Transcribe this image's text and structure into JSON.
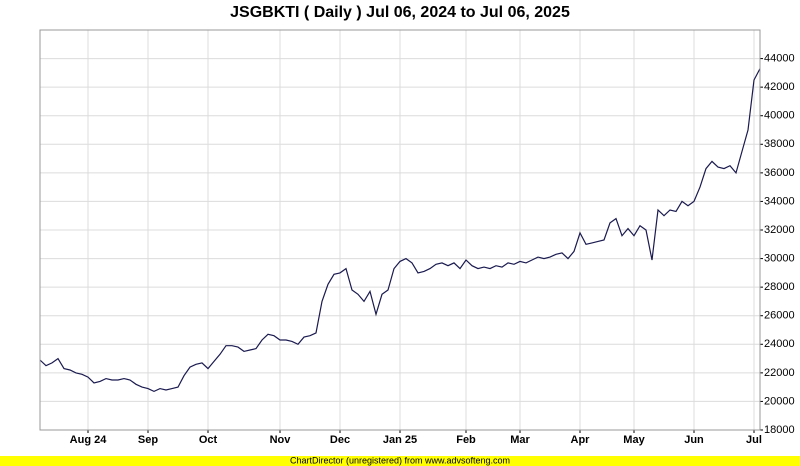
{
  "chart_data": {
    "type": "line",
    "title": "JSGBKTI ( Daily ) Jul 06, 2024 to Jul 06, 2025",
    "footer": "ChartDirector (unregistered) from www.advsofteng.com",
    "categories": [
      null,
      null,
      null,
      null,
      null,
      null,
      null,
      null,
      "Aug 24",
      null,
      null,
      null,
      null,
      null,
      null,
      null,
      null,
      null,
      "Sep",
      null,
      null,
      null,
      null,
      null,
      null,
      null,
      null,
      null,
      "Oct",
      null,
      null,
      null,
      null,
      null,
      null,
      null,
      null,
      null,
      null,
      null,
      "Nov",
      null,
      null,
      null,
      null,
      null,
      null,
      null,
      null,
      null,
      "Dec",
      null,
      null,
      null,
      null,
      null,
      null,
      null,
      null,
      null,
      "Jan 25",
      null,
      null,
      null,
      null,
      null,
      null,
      null,
      null,
      null,
      null,
      "Feb",
      null,
      null,
      null,
      null,
      null,
      null,
      null,
      null,
      "Mar",
      null,
      null,
      null,
      null,
      null,
      null,
      null,
      null,
      null,
      "Apr",
      null,
      null,
      null,
      null,
      null,
      null,
      null,
      null,
      "May",
      null,
      null,
      null,
      null,
      null,
      null,
      null,
      null,
      null,
      "Jun",
      null,
      null,
      null,
      null,
      null,
      null,
      null,
      null,
      null,
      "Jul",
      null
    ],
    "values": [
      22900,
      22500,
      22700,
      23000,
      22300,
      22200,
      22000,
      21900,
      21700,
      21300,
      21400,
      21600,
      21500,
      21500,
      21600,
      21500,
      21200,
      21000,
      20900,
      20700,
      20900,
      20800,
      20900,
      21000,
      21800,
      22400,
      22600,
      22700,
      22300,
      22800,
      23300,
      23900,
      23900,
      23800,
      23500,
      23600,
      23700,
      24300,
      24700,
      24600,
      24300,
      24300,
      24200,
      24000,
      24500,
      24600,
      24800,
      27000,
      28200,
      28900,
      29000,
      29300,
      27800,
      27500,
      27000,
      27700,
      26100,
      27500,
      27800,
      29300,
      29800,
      30000,
      29700,
      29000,
      29100,
      29300,
      29600,
      29700,
      29500,
      29700,
      29300,
      29900,
      29500,
      29300,
      29400,
      29300,
      29500,
      29400,
      29700,
      29600,
      29800,
      29700,
      29900,
      30100,
      30000,
      30100,
      30300,
      30400,
      30000,
      30500,
      31800,
      31000,
      31100,
      31200,
      31300,
      32500,
      32800,
      31600,
      32100,
      31600,
      32300,
      32000,
      29900,
      33400,
      33000,
      33400,
      33300,
      34000,
      33700,
      34000,
      35000,
      36300,
      36800,
      36400,
      36300,
      36500,
      36000,
      37500,
      39000,
      42500,
      43300
    ],
    "color": "#1a1a50",
    "ylim": [
      18000,
      46000
    ],
    "yticks": [
      18000,
      20000,
      22000,
      24000,
      26000,
      28000,
      30000,
      32000,
      34000,
      36000,
      38000,
      40000,
      42000,
      44000
    ],
    "grid": true,
    "y_axis_side": "right"
  }
}
